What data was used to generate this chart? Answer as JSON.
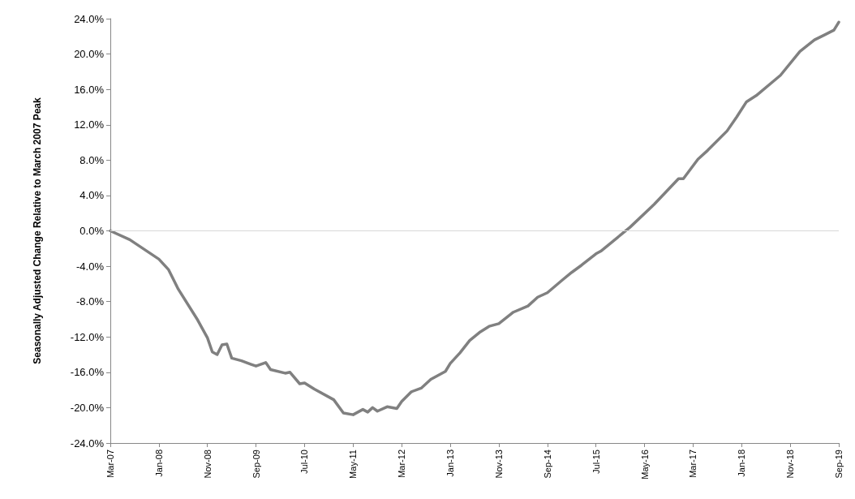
{
  "chart_data": {
    "type": "line",
    "ylabel": "Seasonally Adjusted Change Relative to March 2007 Peak",
    "x": [
      "2007-03",
      "2007-07",
      "2008-01",
      "2008-03",
      "2008-05",
      "2008-09",
      "2008-11",
      "2008-12",
      "2009-01",
      "2009-02",
      "2009-03",
      "2009-04",
      "2009-06",
      "2009-08",
      "2009-09",
      "2009-11",
      "2009-12",
      "2010-03",
      "2010-04",
      "2010-06",
      "2010-07",
      "2010-09",
      "2011-01",
      "2011-03",
      "2011-05",
      "2011-07",
      "2011-08",
      "2011-09",
      "2011-10",
      "2011-12",
      "2012-02",
      "2012-03",
      "2012-05",
      "2012-07",
      "2012-09",
      "2012-12",
      "2013-01",
      "2013-03",
      "2013-05",
      "2013-07",
      "2013-09",
      "2013-11",
      "2014-02",
      "2014-05",
      "2014-07",
      "2014-09",
      "2014-12",
      "2015-02",
      "2015-04",
      "2015-07",
      "2015-08",
      "2016-02",
      "2016-07",
      "2016-12",
      "2017-01",
      "2017-04",
      "2017-06",
      "2017-10",
      "2017-12",
      "2018-02",
      "2018-04",
      "2018-09",
      "2019-01",
      "2019-04",
      "2019-08",
      "2019-09"
    ],
    "series": [
      {
        "color": "#808080",
        "values": [
          0,
          -1.0,
          -3.2,
          -4.4,
          -6.6,
          -10.1,
          -12.1,
          -13.7,
          -14.0,
          -12.9,
          -12.8,
          -14.4,
          -14.7,
          -15.1,
          -15.3,
          -14.9,
          -15.7,
          -16.1,
          -16.0,
          -17.3,
          -17.2,
          -17.9,
          -19.1,
          -20.6,
          -20.8,
          -20.2,
          -20.5,
          -20.0,
          -20.4,
          -19.9,
          -20.1,
          -19.3,
          -18.2,
          -17.8,
          -16.8,
          -15.9,
          -15.0,
          -13.8,
          -12.4,
          -11.5,
          -10.8,
          -10.5,
          -9.2,
          -8.5,
          -7.5,
          -7.0,
          -5.6,
          -4.7,
          -3.9,
          -2.6,
          -2.3,
          0.4,
          3.0,
          5.9,
          5.9,
          8.1,
          9.1,
          11.3,
          12.9,
          14.6,
          15.3,
          17.6,
          20.3,
          21.6,
          22.7,
          23.6
        ]
      }
    ],
    "xlim": [
      "2007-03",
      "2019-09"
    ],
    "xticks": [
      {
        "value": "2007-03",
        "label": "Mar-07"
      },
      {
        "value": "2008-01",
        "label": "Jan-08"
      },
      {
        "value": "2008-11",
        "label": "Nov-08"
      },
      {
        "value": "2009-09",
        "label": "Sep-09"
      },
      {
        "value": "2010-07",
        "label": "Jul-10"
      },
      {
        "value": "2011-05",
        "label": "May-11"
      },
      {
        "value": "2012-03",
        "label": "Mar-12"
      },
      {
        "value": "2013-01",
        "label": "Jan-13"
      },
      {
        "value": "2013-11",
        "label": "Nov-13"
      },
      {
        "value": "2014-09",
        "label": "Sep-14"
      },
      {
        "value": "2015-07",
        "label": "Jul-15"
      },
      {
        "value": "2016-05",
        "label": "May-16"
      },
      {
        "value": "2017-03",
        "label": "Mar-17"
      },
      {
        "value": "2018-01",
        "label": "Jan-18"
      },
      {
        "value": "2018-11",
        "label": "Nov-18"
      },
      {
        "value": "2019-09",
        "label": "Sep-19"
      }
    ],
    "ylim": [
      -24,
      24
    ],
    "yticks": [
      {
        "value": -24,
        "label": "-24.0%"
      },
      {
        "value": -20,
        "label": "-20.0%"
      },
      {
        "value": -16,
        "label": "-16.0%"
      },
      {
        "value": -12,
        "label": "-12.0%"
      },
      {
        "value": -8,
        "label": "-8.0%"
      },
      {
        "value": -4,
        "label": "-4.0%"
      },
      {
        "value": 0,
        "label": "0.0%"
      },
      {
        "value": 4,
        "label": "4.0%"
      },
      {
        "value": 8,
        "label": "8.0%"
      },
      {
        "value": 12,
        "label": "12.0%"
      },
      {
        "value": 16,
        "label": "16.0%"
      },
      {
        "value": 20,
        "label": "20.0%"
      },
      {
        "value": 24,
        "label": "24.0%"
      }
    ],
    "ref_lines": [
      {
        "axis": "y",
        "value": 0,
        "color": "#d9d9d9"
      }
    ],
    "marker": "none",
    "line_style": "solid"
  }
}
